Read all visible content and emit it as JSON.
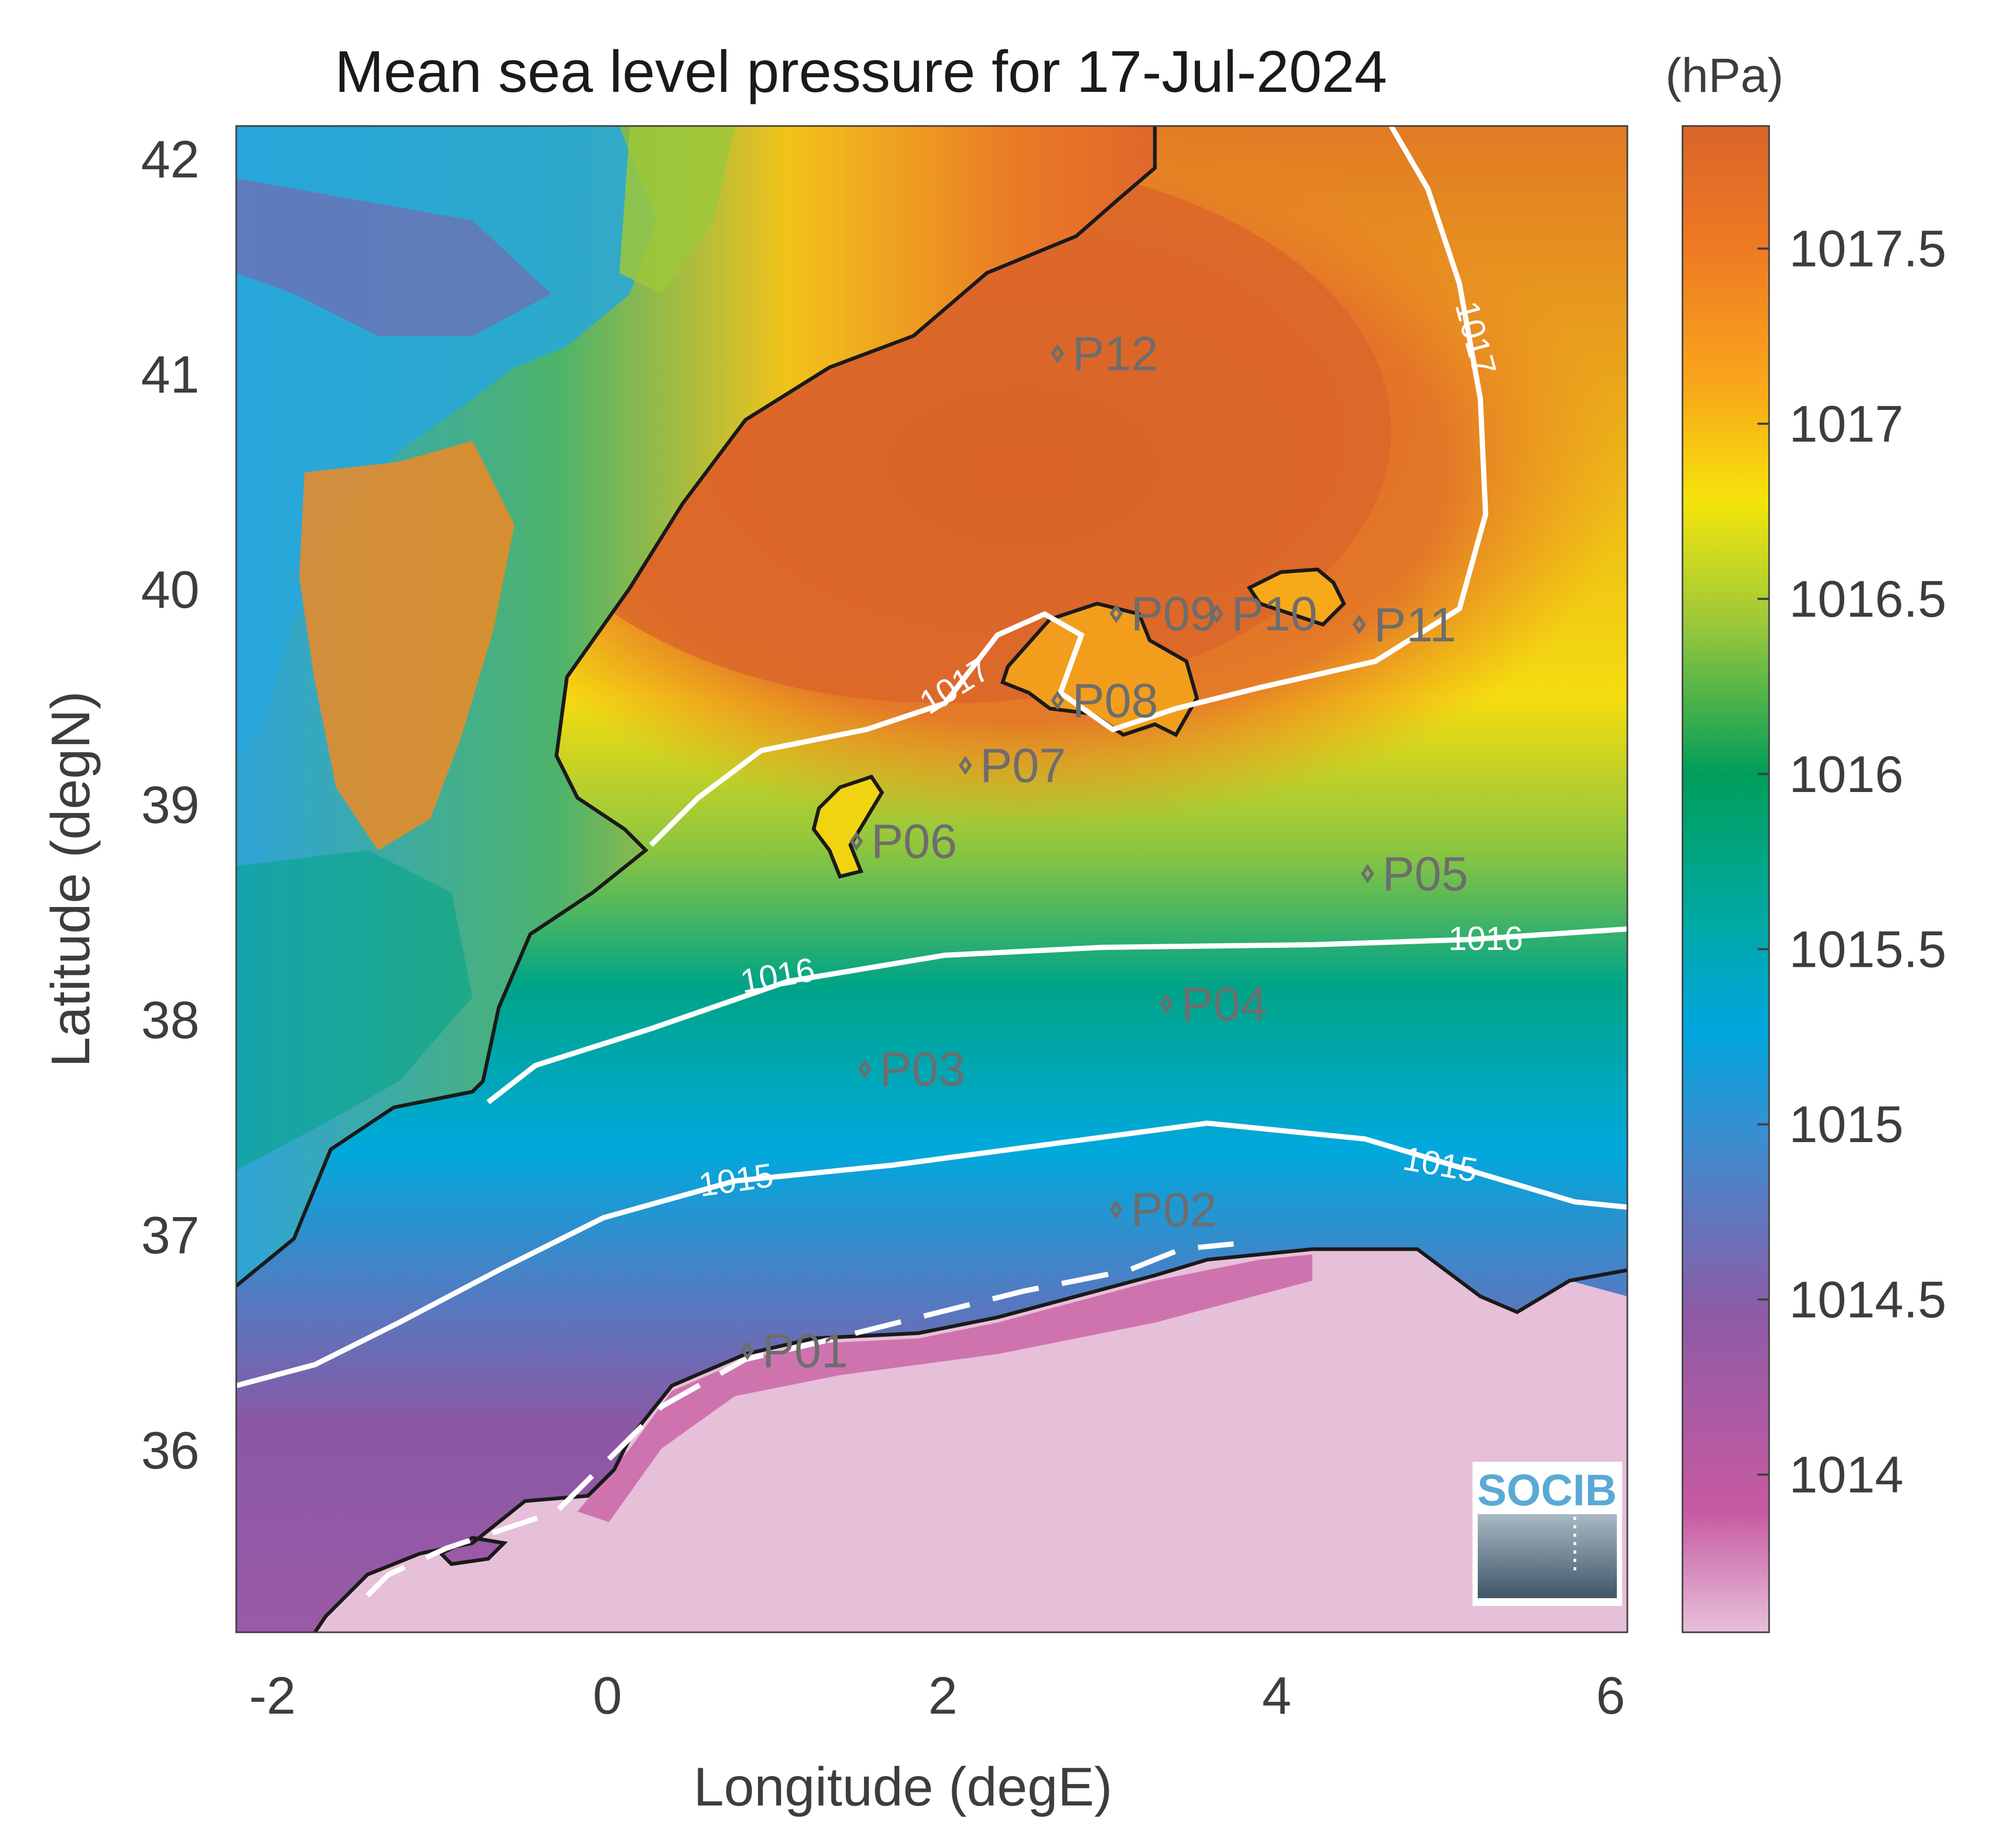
{
  "title": "Mean sea level pressure for 17-Jul-2024",
  "units": "(hPa)",
  "x_axis": {
    "label": "Longitude (degE)",
    "ticks": [
      "-2",
      "0",
      "2",
      "4",
      "6"
    ],
    "range": [
      -2.2,
      6.1
    ]
  },
  "y_axis": {
    "label": "Latitude (degN)",
    "ticks": [
      "42",
      "41",
      "40",
      "39",
      "38",
      "37",
      "36"
    ],
    "range": [
      35.2,
      42.15
    ]
  },
  "colorbar": {
    "ticks": [
      "1017.5",
      "1017",
      "1016.5",
      "1016",
      "1015.5",
      "1015",
      "1014.5",
      "1014"
    ],
    "range": [
      1013.55,
      1017.85
    ],
    "colors": [
      "#e7c0d9",
      "#c75aa2",
      "#8f5aa5",
      "#3a8ed0",
      "#00a6de",
      "#00a896",
      "#009e5a",
      "#9cc83a",
      "#f4e40a",
      "#f9a51a",
      "#ee7a23",
      "#d9642a"
    ]
  },
  "contours": [
    {
      "level": 1015,
      "label": "1015"
    },
    {
      "level": 1016,
      "label": "1016"
    },
    {
      "level": 1017,
      "label": "1017"
    }
  ],
  "stations": [
    {
      "id": "P01",
      "lon": 0.85,
      "lat": 36.5
    },
    {
      "id": "P02",
      "lon": 3.05,
      "lat": 37.15
    },
    {
      "id": "P03",
      "lon": 1.55,
      "lat": 37.8
    },
    {
      "id": "P04",
      "lon": 3.35,
      "lat": 38.1
    },
    {
      "id": "P05",
      "lon": 4.55,
      "lat": 38.7
    },
    {
      "id": "P06",
      "lon": 1.5,
      "lat": 38.85
    },
    {
      "id": "P07",
      "lon": 2.15,
      "lat": 39.2
    },
    {
      "id": "P08",
      "lon": 2.7,
      "lat": 39.5
    },
    {
      "id": "P09",
      "lon": 3.05,
      "lat": 39.9
    },
    {
      "id": "P10",
      "lon": 3.65,
      "lat": 39.9
    },
    {
      "id": "P11",
      "lon": 4.5,
      "lat": 39.85
    },
    {
      "id": "P12",
      "lon": 2.7,
      "lat": 41.1
    }
  ],
  "logo_text": "SOCIB",
  "chart_data": {
    "type": "heatmap",
    "title": "Mean sea level pressure for 17-Jul-2024",
    "xlabel": "Longitude (degE)",
    "ylabel": "Latitude (degN)",
    "xlim": [
      -2.2,
      6.1
    ],
    "ylim": [
      35.2,
      42.15
    ],
    "colorbar_label": "(hPa)",
    "clim": [
      1013.55,
      1017.85
    ],
    "contour_levels": [
      1015,
      1016,
      1017
    ]
  }
}
